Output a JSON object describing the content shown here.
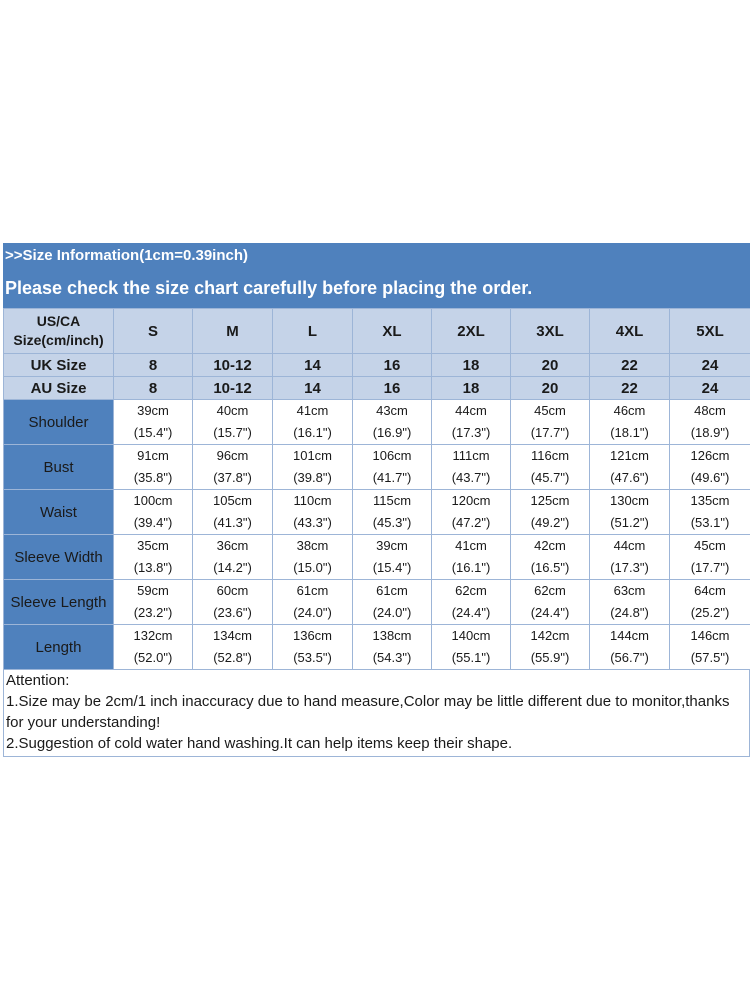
{
  "header": {
    "info": ">>Size Information(1cm=0.39inch)",
    "instruction": "Please check the size chart carefully before placing the order."
  },
  "table": {
    "corner_line1": "US/CA",
    "corner_line2": "Size(cm/inch)",
    "sizes": [
      "S",
      "M",
      "L",
      "XL",
      "2XL",
      "3XL",
      "4XL",
      "5XL"
    ],
    "uk": {
      "label": "UK Size",
      "values": [
        "8",
        "10-12",
        "14",
        "16",
        "18",
        "20",
        "22",
        "24"
      ]
    },
    "au": {
      "label": "AU Size",
      "values": [
        "8",
        "10-12",
        "14",
        "16",
        "18",
        "20",
        "22",
        "24"
      ]
    },
    "rows": [
      {
        "label": "Shoulder",
        "cm": [
          "39cm",
          "40cm",
          "41cm",
          "43cm",
          "44cm",
          "45cm",
          "46cm",
          "48cm"
        ],
        "inch": [
          "(15.4\")",
          "(15.7\")",
          "(16.1\")",
          "(16.9\")",
          "(17.3\")",
          "(17.7\")",
          "(18.1\")",
          "(18.9\")"
        ]
      },
      {
        "label": "Bust",
        "cm": [
          "91cm",
          "96cm",
          "101cm",
          "106cm",
          "111cm",
          "116cm",
          "121cm",
          "126cm"
        ],
        "inch": [
          "(35.8\")",
          "(37.8\")",
          "(39.8\")",
          "(41.7\")",
          "(43.7\")",
          "(45.7\")",
          "(47.6\")",
          "(49.6\")"
        ]
      },
      {
        "label": "Waist",
        "cm": [
          "100cm",
          "105cm",
          "110cm",
          "115cm",
          "120cm",
          "125cm",
          "130cm",
          "135cm"
        ],
        "inch": [
          "(39.4\")",
          "(41.3\")",
          "(43.3\")",
          "(45.3\")",
          "(47.2\")",
          "(49.2\")",
          "(51.2\")",
          "(53.1\")"
        ]
      },
      {
        "label": "Sleeve Width",
        "cm": [
          "35cm",
          "36cm",
          "38cm",
          "39cm",
          "41cm",
          "42cm",
          "44cm",
          "45cm"
        ],
        "inch": [
          "(13.8\")",
          "(14.2\")",
          "(15.0\")",
          "(15.4\")",
          "(16.1\")",
          "(16.5\")",
          "(17.3\")",
          "(17.7\")"
        ]
      },
      {
        "label": "Sleeve Length",
        "cm": [
          "59cm",
          "60cm",
          "61cm",
          "61cm",
          "62cm",
          "62cm",
          "63cm",
          "64cm"
        ],
        "inch": [
          "(23.2\")",
          "(23.6\")",
          "(24.0\")",
          "(24.0\")",
          "(24.4\")",
          "(24.4\")",
          "(24.8\")",
          "(25.2\")"
        ]
      },
      {
        "label": "Length",
        "cm": [
          "132cm",
          "134cm",
          "136cm",
          "138cm",
          "140cm",
          "142cm",
          "144cm",
          "146cm"
        ],
        "inch": [
          "(52.0\")",
          "(52.8\")",
          "(53.5\")",
          "(54.3\")",
          "(55.1\")",
          "(55.9\")",
          "(56.7\")",
          "(57.5\")"
        ]
      }
    ]
  },
  "notes": {
    "title": "Attention:",
    "line1": "1.Size may be 2cm/1 inch inaccuracy due to hand measure,Color may be little different due to monitor,thanks for your understanding!",
    "line2": "2.Suggestion of cold water hand washing.It can help items keep their shape."
  },
  "colors": {
    "header_blue": "#4f81bd",
    "light_blue": "#c5d3e8",
    "border": "#9db5d7"
  }
}
